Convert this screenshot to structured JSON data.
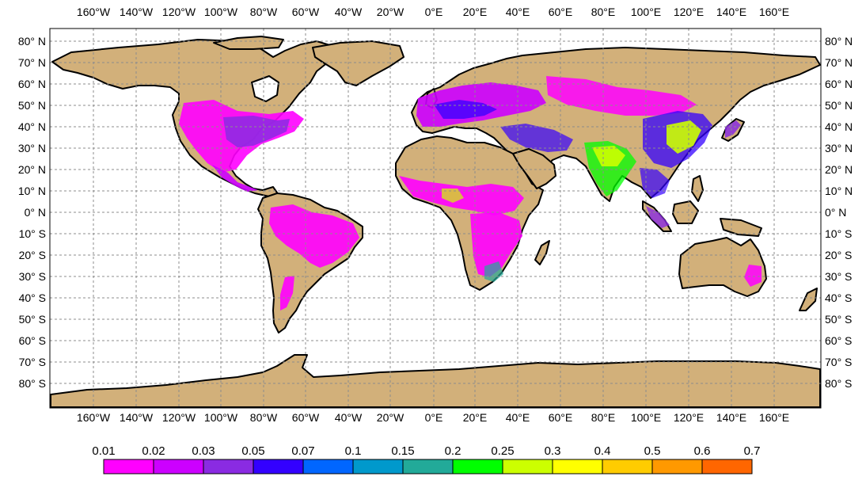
{
  "map": {
    "top_lon_labels": [
      "160°W",
      "140°W",
      "120°W",
      "100°W",
      "80°W",
      "60°W",
      "40°W",
      "20°W",
      "0°E",
      "20°E",
      "40°E",
      "60°E",
      "80°E",
      "100°E",
      "120°E",
      "140°E",
      "160°E"
    ],
    "bottom_lon_labels": [
      "160°W",
      "140°W",
      "120°W",
      "100°W",
      "80°W",
      "60°W",
      "40°W",
      "20°W",
      "0°E",
      "20°E",
      "40°E",
      "60°E",
      "80°E",
      "100°E",
      "120°E",
      "140°E",
      "160°E"
    ],
    "lat_labels": [
      "80° N",
      "70° N",
      "60° N",
      "50° N",
      "40° N",
      "30° N",
      "20° N",
      "10° N",
      "0° N",
      "10° S",
      "20° S",
      "30° S",
      "40° S",
      "50° S",
      "60° S",
      "70° S",
      "80° S"
    ],
    "land_color": "#D2B07A",
    "coast_color": "#000000",
    "grid_style": "dashed"
  },
  "colorbar": {
    "labels": [
      "0.01",
      "0.02",
      "0.03",
      "0.05",
      "0.07",
      "0.1",
      "0.15",
      "0.2",
      "0.25",
      "0.3",
      "0.4",
      "0.5",
      "0.6",
      "0.7"
    ],
    "colors": [
      "#FF00FF",
      "#CC00FF",
      "#8A2BE2",
      "#3300FF",
      "#0066FF",
      "#0099CC",
      "#22AA99",
      "#00FF00",
      "#CCFF00",
      "#FFFF00",
      "#FFCC00",
      "#FF9900",
      "#FF6600",
      "#FF0000"
    ]
  }
}
